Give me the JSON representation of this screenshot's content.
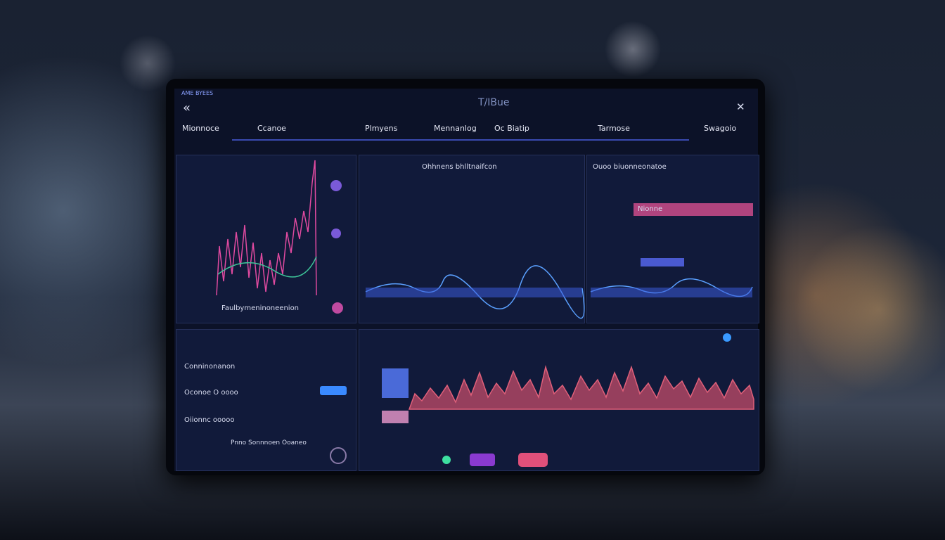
{
  "header": {
    "brand": "AME BYEES",
    "title": "T/IBue"
  },
  "tabs": [
    "Mionnoce",
    "Ccanoe",
    "Plmyens",
    "Mennanlog",
    "Oc Biatip",
    "Tarmose",
    "Swagoio"
  ],
  "panels": {
    "left_top": {
      "footer": "Faulbymeninoneenion"
    },
    "middle_top": {
      "title": "Ohhnens bhlltnaifcon"
    },
    "right_top": {
      "title": "Ouoo biuonneonatoe",
      "button": "Nionne"
    },
    "left_bottom": {
      "rows": [
        "Conninonanon",
        "Oconoe O oooo",
        "Oiionnc ooooo"
      ],
      "footer": "Pnno Sonnnoen Ooaneo"
    }
  }
}
